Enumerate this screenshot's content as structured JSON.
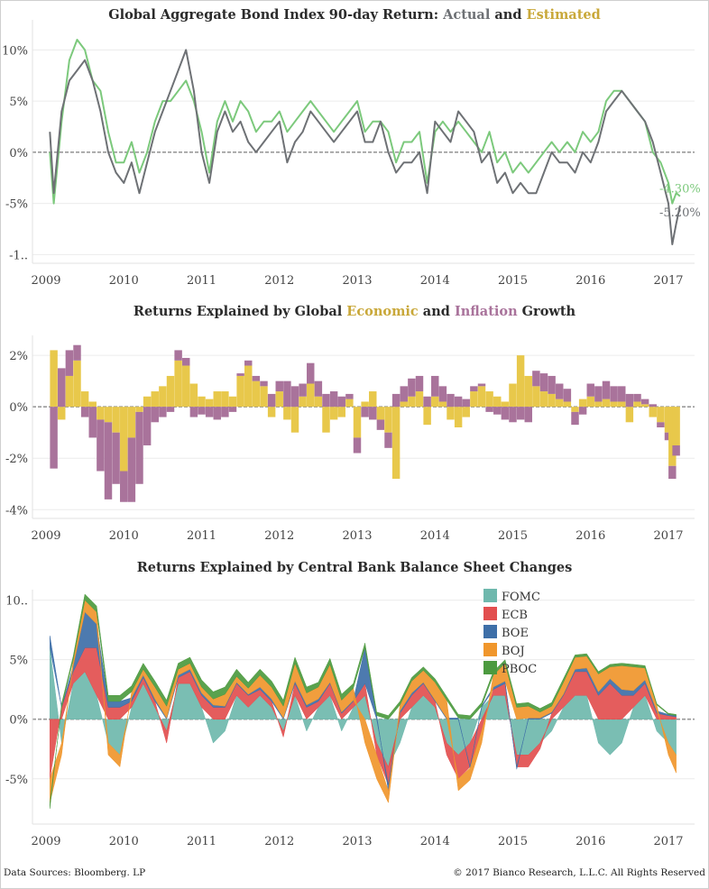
{
  "chart_data": [
    {
      "type": "line",
      "title_parts": [
        {
          "text": "Global Aggregate Bond Index 90-day Return: ",
          "role": "plain"
        },
        {
          "text": "Actual",
          "role": "actual"
        },
        {
          "text": " and ",
          "role": "plain"
        },
        {
          "text": "Estimated",
          "role": "estimated"
        }
      ],
      "x_tick_labels": [
        "2009",
        "2010",
        "2011",
        "2012",
        "2013",
        "2014",
        "2015",
        "2016",
        "2017"
      ],
      "y_tick_labels": [
        "10%",
        "5%",
        "0%",
        "-5%",
        "-1.."
      ],
      "ylim": [
        -10.5,
        12.5
      ],
      "grid": true,
      "series": [
        {
          "name": "Actual",
          "color": "#6e7175",
          "x": [
            2009.05,
            2009.1,
            2009.2,
            2009.3,
            2009.4,
            2009.5,
            2009.6,
            2009.7,
            2009.8,
            2009.9,
            2010.0,
            2010.1,
            2010.2,
            2010.3,
            2010.4,
            2010.5,
            2010.6,
            2010.7,
            2010.8,
            2010.9,
            2011.0,
            2011.1,
            2011.2,
            2011.3,
            2011.4,
            2011.5,
            2011.6,
            2011.7,
            2011.8,
            2011.9,
            2012.0,
            2012.1,
            2012.2,
            2012.3,
            2012.4,
            2012.5,
            2012.6,
            2012.7,
            2012.8,
            2012.9,
            2013.0,
            2013.1,
            2013.2,
            2013.3,
            2013.4,
            2013.5,
            2013.6,
            2013.7,
            2013.8,
            2013.9,
            2014.0,
            2014.1,
            2014.2,
            2014.3,
            2014.4,
            2014.5,
            2014.6,
            2014.7,
            2014.8,
            2014.9,
            2015.0,
            2015.1,
            2015.2,
            2015.3,
            2015.4,
            2015.5,
            2015.6,
            2015.7,
            2015.8,
            2015.9,
            2016.0,
            2016.1,
            2016.2,
            2016.3,
            2016.4,
            2016.5,
            2016.6,
            2016.7,
            2016.8,
            2016.9,
            2017.0,
            2017.05,
            2017.1,
            2017.15
          ],
          "y": [
            2,
            -4,
            4,
            7,
            8,
            9,
            7,
            4,
            0,
            -2,
            -3,
            -1,
            -4,
            -1,
            2,
            4,
            6,
            8,
            10,
            6,
            0,
            -3,
            2,
            4,
            2,
            3,
            1,
            0,
            1,
            2,
            3,
            -1,
            1,
            2,
            4,
            3,
            2,
            1,
            2,
            3,
            4,
            1,
            1,
            3,
            0,
            -2,
            -1,
            -1,
            0,
            -4,
            3,
            2,
            1,
            4,
            3,
            2,
            -1,
            0,
            -3,
            -2,
            -4,
            -3,
            -4,
            -4,
            -2,
            0,
            -1,
            -1,
            -2,
            0,
            -1,
            1,
            4,
            5,
            6,
            5,
            4,
            3,
            1,
            -2,
            -5,
            -9,
            -7,
            -5.2
          ]
        },
        {
          "name": "Estimated",
          "color": "#7cc97c",
          "x": [
            2009.05,
            2009.1,
            2009.2,
            2009.3,
            2009.4,
            2009.5,
            2009.6,
            2009.7,
            2009.8,
            2009.9,
            2010.0,
            2010.1,
            2010.2,
            2010.3,
            2010.4,
            2010.5,
            2010.6,
            2010.7,
            2010.8,
            2010.9,
            2011.0,
            2011.1,
            2011.2,
            2011.3,
            2011.4,
            2011.5,
            2011.6,
            2011.7,
            2011.8,
            2011.9,
            2012.0,
            2012.1,
            2012.2,
            2012.3,
            2012.4,
            2012.5,
            2012.6,
            2012.7,
            2012.8,
            2012.9,
            2013.0,
            2013.1,
            2013.2,
            2013.3,
            2013.4,
            2013.5,
            2013.6,
            2013.7,
            2013.8,
            2013.9,
            2014.0,
            2014.1,
            2014.2,
            2014.3,
            2014.4,
            2014.5,
            2014.6,
            2014.7,
            2014.8,
            2014.9,
            2015.0,
            2015.1,
            2015.2,
            2015.3,
            2015.4,
            2015.5,
            2015.6,
            2015.7,
            2015.8,
            2015.9,
            2016.0,
            2016.1,
            2016.2,
            2016.3,
            2016.4,
            2016.5,
            2016.6,
            2016.7,
            2016.8,
            2016.9,
            2017.0,
            2017.05,
            2017.1,
            2017.15
          ],
          "y": [
            0,
            -5,
            3,
            9,
            11,
            10,
            7,
            6,
            2,
            -1,
            -1,
            1,
            -2,
            0,
            3,
            5,
            5,
            6,
            7,
            5,
            2,
            -2,
            3,
            5,
            3,
            5,
            4,
            2,
            3,
            3,
            4,
            2,
            3,
            4,
            5,
            4,
            3,
            2,
            3,
            4,
            5,
            2,
            3,
            3,
            2,
            -1,
            1,
            1,
            2,
            -3,
            2,
            3,
            2,
            3,
            2,
            1,
            0,
            2,
            -1,
            0,
            -2,
            -1,
            -2,
            -1,
            0,
            1,
            0,
            1,
            0,
            2,
            1,
            2,
            5,
            6,
            6,
            5,
            4,
            3,
            0,
            -1,
            -3,
            -5,
            -4,
            -4.3
          ]
        }
      ],
      "end_labels": [
        {
          "text": "-4.30%",
          "series": "Estimated"
        },
        {
          "text": "-5.20%",
          "series": "Actual"
        }
      ]
    },
    {
      "type": "bar",
      "title_parts": [
        {
          "text": "Returns Explained by Global ",
          "role": "plain"
        },
        {
          "text": "Economic",
          "role": "economic"
        },
        {
          "text": " and ",
          "role": "plain"
        },
        {
          "text": "Inflation",
          "role": "inflation"
        },
        {
          "text": " Growth",
          "role": "plain"
        }
      ],
      "x_tick_labels": [
        "2009",
        "2010",
        "2011",
        "2012",
        "2013",
        "2014",
        "2015",
        "2016",
        "2017"
      ],
      "y_tick_labels": [
        "2%",
        "0%",
        "-2%",
        "-4%"
      ],
      "ylim": [
        -4.2,
        2.6
      ],
      "grid": true,
      "stacked": true,
      "x": [
        2009.1,
        2009.2,
        2009.3,
        2009.4,
        2009.5,
        2009.6,
        2009.7,
        2009.8,
        2009.9,
        2010.0,
        2010.1,
        2010.2,
        2010.3,
        2010.4,
        2010.5,
        2010.6,
        2010.7,
        2010.8,
        2010.9,
        2011.0,
        2011.1,
        2011.2,
        2011.3,
        2011.4,
        2011.5,
        2011.6,
        2011.7,
        2011.8,
        2011.9,
        2012.0,
        2012.1,
        2012.2,
        2012.3,
        2012.4,
        2012.5,
        2012.6,
        2012.7,
        2012.8,
        2012.9,
        2013.0,
        2013.1,
        2013.2,
        2013.3,
        2013.4,
        2013.5,
        2013.6,
        2013.7,
        2013.8,
        2013.9,
        2014.0,
        2014.1,
        2014.2,
        2014.3,
        2014.4,
        2014.5,
        2014.6,
        2014.7,
        2014.8,
        2014.9,
        2015.0,
        2015.1,
        2015.2,
        2015.3,
        2015.4,
        2015.5,
        2015.6,
        2015.7,
        2015.8,
        2015.9,
        2016.0,
        2016.1,
        2016.2,
        2016.3,
        2016.4,
        2016.5,
        2016.6,
        2016.7,
        2016.8,
        2016.9,
        2017.0,
        2017.05,
        2017.1
      ],
      "series": [
        {
          "name": "Economic",
          "color": "#e8c84b",
          "values": [
            2.2,
            -0.5,
            1.2,
            1.8,
            0.6,
            0.2,
            -0.5,
            -0.6,
            -1.0,
            -2.5,
            -1.2,
            -0.2,
            0.4,
            0.6,
            0.8,
            1.2,
            1.8,
            1.6,
            0.9,
            0.4,
            0.3,
            0.6,
            0.6,
            0.4,
            1.2,
            1.6,
            1.0,
            0.8,
            -0.4,
            0.6,
            -0.5,
            -1.0,
            0.4,
            0.9,
            0.4,
            -1.0,
            -0.5,
            -0.4,
            0.3,
            -1.2,
            0.2,
            0.6,
            -0.5,
            -1.0,
            -2.8,
            0.2,
            0.4,
            0.6,
            -0.7,
            0.4,
            0.2,
            -0.5,
            -0.8,
            -0.4,
            0.6,
            0.8,
            0.6,
            0.4,
            0.2,
            0.9,
            2.0,
            1.2,
            0.8,
            0.6,
            0.5,
            0.3,
            0.2,
            -0.2,
            0.3,
            0.4,
            0.2,
            0.3,
            0.2,
            0.2,
            -0.6,
            0.2,
            0.1,
            -0.4,
            -0.6,
            -1.0,
            -2.3,
            -1.5
          ]
        },
        {
          "name": "Inflation",
          "color": "#a9739b",
          "values": [
            -2.4,
            1.5,
            1.0,
            0.6,
            -0.4,
            -1.2,
            -2.0,
            -3.0,
            -2.0,
            -1.2,
            -2.5,
            -2.8,
            -1.5,
            -0.6,
            -0.4,
            -0.2,
            0.4,
            0.3,
            -0.4,
            -0.3,
            -0.4,
            -0.5,
            -0.4,
            -0.2,
            0.1,
            0.2,
            0.2,
            0.2,
            0.5,
            0.4,
            1.0,
            0.8,
            0.5,
            0.8,
            0.6,
            0.5,
            0.6,
            0.4,
            0.2,
            -0.6,
            -0.4,
            -0.5,
            -0.4,
            -0.6,
            0.5,
            0.6,
            0.7,
            0.6,
            0.4,
            0.8,
            0.6,
            0.5,
            0.4,
            0.3,
            0.2,
            0.1,
            -0.2,
            -0.3,
            -0.5,
            -0.6,
            -0.5,
            -0.6,
            0.6,
            0.7,
            0.7,
            0.6,
            0.5,
            -0.5,
            -0.3,
            0.5,
            0.6,
            0.7,
            0.6,
            0.6,
            0.5,
            0.3,
            0.2,
            0.1,
            -0.2,
            -0.3,
            -0.5,
            -0.4
          ]
        }
      ]
    },
    {
      "type": "area",
      "title": "Returns Explained by Central Bank Balance Sheet Changes",
      "x_tick_labels": [
        "2009",
        "2010",
        "2011",
        "2012",
        "2013",
        "2014",
        "2015",
        "2016",
        "2017"
      ],
      "y_tick_labels": [
        "10..",
        "5%",
        "0%",
        "-5%"
      ],
      "ylim": [
        -8.5,
        10.5
      ],
      "grid": true,
      "stacked": true,
      "legend_position": "top-right",
      "x": [
        2009.05,
        2009.2,
        2009.35,
        2009.5,
        2009.65,
        2009.8,
        2009.95,
        2010.1,
        2010.25,
        2010.4,
        2010.55,
        2010.7,
        2010.85,
        2011.0,
        2011.15,
        2011.3,
        2011.45,
        2011.6,
        2011.75,
        2011.9,
        2012.05,
        2012.2,
        2012.35,
        2012.5,
        2012.65,
        2012.8,
        2012.95,
        2013.1,
        2013.25,
        2013.4,
        2013.55,
        2013.7,
        2013.85,
        2014.0,
        2014.15,
        2014.3,
        2014.45,
        2014.6,
        2014.75,
        2014.9,
        2015.05,
        2015.2,
        2015.35,
        2015.5,
        2015.65,
        2015.8,
        2015.95,
        2016.1,
        2016.25,
        2016.4,
        2016.55,
        2016.7,
        2016.85,
        2017.0,
        2017.1
      ],
      "series": [
        {
          "name": "FOMC",
          "color": "#6fb8ad",
          "values": [
            6,
            -2,
            3,
            4,
            2,
            -2,
            -3,
            1,
            3,
            1,
            -1,
            3,
            3,
            1,
            -2,
            -1,
            2,
            1,
            2,
            1,
            -1,
            2,
            -1,
            1,
            2,
            -1,
            1,
            2,
            -2,
            -4,
            -2,
            1,
            2,
            1,
            -2,
            -3,
            -2,
            1,
            2,
            2,
            -3,
            -3,
            -2,
            -1,
            1,
            2,
            2,
            -2,
            -3,
            -2,
            1,
            2,
            -1,
            -2,
            -3
          ]
        },
        {
          "name": "ECB",
          "color": "#e24f4f",
          "values": [
            -5,
            1,
            1,
            2,
            4,
            1,
            1,
            0.5,
            0.5,
            0.5,
            -1,
            0.5,
            1,
            1,
            1,
            1,
            1,
            1,
            0.5,
            0.5,
            -0.5,
            1,
            1,
            0.5,
            1,
            0.5,
            0.5,
            1,
            -1,
            -1.5,
            0.5,
            1,
            1,
            0.5,
            -1,
            -2,
            -2,
            -1,
            0.5,
            1,
            -1,
            -1,
            -0.5,
            0.5,
            1,
            2,
            2,
            2,
            3,
            2,
            1,
            1,
            0.5,
            0.3,
            0.2
          ]
        },
        {
          "name": "BOE",
          "color": "#3e6fa8",
          "values": [
            1,
            0,
            0.5,
            3,
            2,
            0.5,
            0.5,
            0.3,
            0.2,
            0.2,
            0.1,
            0.2,
            0.2,
            0.2,
            0.2,
            0.1,
            0.1,
            0.1,
            0.2,
            0.2,
            0.1,
            0.2,
            0.2,
            0.2,
            0.1,
            0.1,
            0.1,
            3,
            0.3,
            -0.5,
            0.2,
            0.2,
            0.1,
            0.1,
            0.1,
            0.1,
            -0.1,
            0.1,
            0.2,
            0.2,
            -0.2,
            0.1,
            0.1,
            0.1,
            0.1,
            0.2,
            0.3,
            0.3,
            0.4,
            0.5,
            0.4,
            0.3,
            0.2,
            0.1,
            0.1
          ]
        },
        {
          "name": "BOJ",
          "color": "#f0962c",
          "values": [
            -2,
            -1,
            0.5,
            1,
            1,
            -1,
            -1,
            0.5,
            0.5,
            1,
            1,
            0.5,
            0.5,
            0.5,
            0.5,
            1,
            0.5,
            0.5,
            1,
            1,
            1,
            1.5,
            1,
            1,
            1.5,
            1,
            1,
            -2,
            -2,
            -1,
            0.5,
            1,
            1,
            1.5,
            1.5,
            -1,
            -1,
            -1,
            1,
            1.5,
            1,
            1,
            0.5,
            0.5,
            1,
            1,
            1,
            1.5,
            1,
            2,
            2,
            1,
            0.5,
            -1,
            -1.5
          ]
        },
        {
          "name": "PBOC",
          "color": "#4c9a3f",
          "values": [
            -0.5,
            0.3,
            0.3,
            0.5,
            0.5,
            0.5,
            0.5,
            0.5,
            0.5,
            0.5,
            0.5,
            0.5,
            0.5,
            0.6,
            0.6,
            0.6,
            0.6,
            0.5,
            0.5,
            0.5,
            0.5,
            0.5,
            0.5,
            0.4,
            0.5,
            0.5,
            0.4,
            0.4,
            0.3,
            0.3,
            0.3,
            0.3,
            0.3,
            0.3,
            0.3,
            0.3,
            0.3,
            0.3,
            0.3,
            0.3,
            0.3,
            0.3,
            0.3,
            0.3,
            0.3,
            0.2,
            0.2,
            0.2,
            0.2,
            0.2,
            0.2,
            0.2,
            0.1,
            0.1,
            0.1
          ]
        }
      ]
    }
  ],
  "footer": {
    "left": "Data Sources: Bloomberg. LP",
    "right": "© 2017 Bianco Research, L.L.C. All Rights Reserved"
  }
}
